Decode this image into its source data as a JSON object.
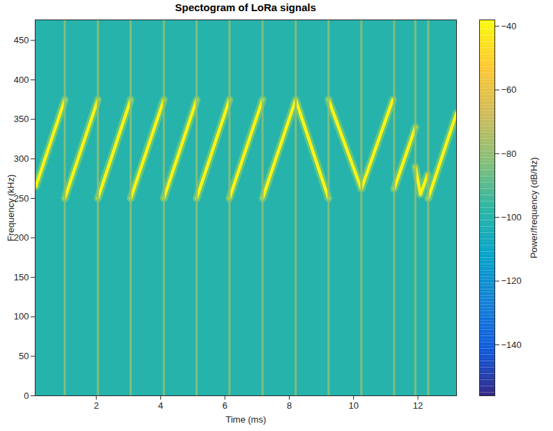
{
  "chart_data": {
    "type": "spectrogram",
    "title": "Spectogram of LoRa signals",
    "x_label": "Time (ms)",
    "y_label": "Frequency (kHz)",
    "xlim": [
      0.1,
      13.2
    ],
    "xticks": [
      2,
      4,
      6,
      8,
      10,
      12
    ],
    "ylim": [
      0,
      476
    ],
    "yticks": [
      0,
      50,
      100,
      150,
      200,
      250,
      300,
      350,
      400,
      450
    ],
    "grid": false,
    "noise_floor": -100,
    "series": [
      {
        "type": "line",
        "level": -40,
        "x": [
          0.12,
          1.02,
          1.02,
          1.02,
          2.05,
          2.05,
          2.05,
          3.07,
          3.07,
          3.07,
          4.1,
          4.1,
          4.1,
          5.12,
          5.12,
          5.12,
          6.14,
          6.14,
          6.14,
          7.17,
          7.17,
          7.17,
          8.2,
          9.22,
          9.22,
          9.22,
          10.24,
          11.22,
          11.22,
          11.26,
          11.92,
          11.92,
          11.92,
          12.08,
          12.3,
          12.3,
          12.32,
          13.2
        ],
        "y": [
          265,
          375,
          null,
          250,
          375,
          null,
          250,
          375,
          null,
          250,
          375,
          null,
          250,
          375,
          null,
          250,
          375,
          null,
          250,
          375,
          null,
          250,
          375,
          250,
          null,
          375,
          262,
          375,
          null,
          262,
          340,
          null,
          290,
          255,
          280,
          null,
          250,
          358
        ]
      },
      {
        "type": "rule",
        "level": -80,
        "x": [
          1.02,
          2.05,
          3.07,
          4.1,
          5.12,
          6.14,
          7.17,
          8.2,
          9.22,
          10.24,
          11.26,
          11.92,
          12.32
        ]
      }
    ],
    "colorbar": {
      "label": "Power/frequency (dB/Hz)",
      "lim": [
        -156,
        -38
      ],
      "ticks": [
        -140,
        -120,
        -100,
        -80,
        -60,
        -40
      ]
    }
  }
}
